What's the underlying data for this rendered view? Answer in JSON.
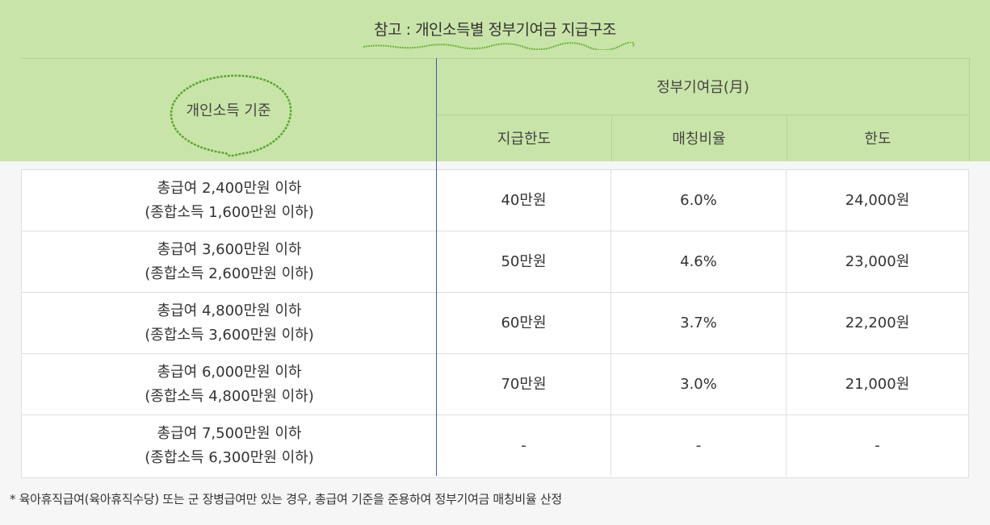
{
  "title": "참고 : 개인소득별 정부기여금 지급구조",
  "header": {
    "income_basis": "개인소득 기준",
    "gov_contribution": "정부기여금(月)",
    "payment_limit": "지급한도",
    "matching_rate": "매칭비율",
    "limit": "한도"
  },
  "rows": [
    {
      "line1": "총급여 2,400만원 이하",
      "line2": "(종합소득 1,600만원 이하)",
      "payment_limit": "40만원",
      "matching_rate": "6.0%",
      "limit": "24,000원"
    },
    {
      "line1": "총급여 3,600만원 이하",
      "line2": "(종합소득 2,600만원 이하)",
      "payment_limit": "50만원",
      "matching_rate": "4.6%",
      "limit": "23,000원"
    },
    {
      "line1": "총급여 4,800만원 이하",
      "line2": "(종합소득 3,600만원 이하)",
      "payment_limit": "60만원",
      "matching_rate": "3.7%",
      "limit": "22,200원"
    },
    {
      "line1": "총급여 6,000만원 이하",
      "line2": "(종합소득 4,800만원 이하)",
      "payment_limit": "70만원",
      "matching_rate": "3.0%",
      "limit": "21,000원"
    },
    {
      "line1": "총급여 7,500만원 이하",
      "line2": "(종합소득 6,300만원 이하)",
      "payment_limit": "-",
      "matching_rate": "-",
      "limit": "-"
    }
  ],
  "footnote": "* 육아휴직급여(육아휴직수당) 또는 군 장병급여만 있는 경우, 총급여 기준을 준용하여 정부기여금 매칭비율 산정",
  "colors": {
    "header_bg": "#c9e4a8",
    "annotation": "#5aa832",
    "divider": "#3a5bb0"
  }
}
